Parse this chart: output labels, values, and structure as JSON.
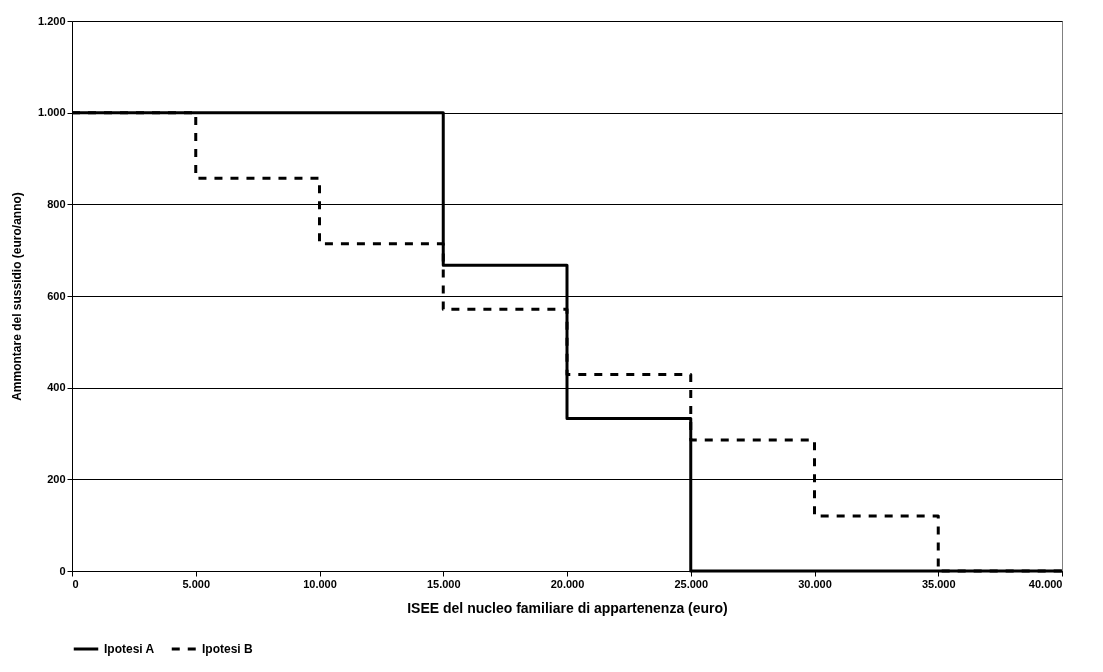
{
  "chart_data": {
    "type": "step",
    "xlabel": "ISEE del nucleo familiare di appartenenza (euro)",
    "ylabel": "Ammontare del sussidio (euro/anno)",
    "xlim": [
      0,
      40000
    ],
    "ylim": [
      0,
      1200
    ],
    "xticks": [
      0,
      {
        "value": 5000,
        "label": "5.000"
      },
      {
        "value": 10000,
        "label": "10.000"
      },
      {
        "value": 15000,
        "label": "15.000"
      },
      {
        "value": 20000,
        "label": "20.000"
      },
      {
        "value": 25000,
        "label": "25.000"
      },
      {
        "value": 30000,
        "label": "30.000"
      },
      {
        "value": 35000,
        "label": "35.000"
      },
      {
        "value": 40000,
        "label": "40.000"
      }
    ],
    "yticks": [
      0,
      200,
      400,
      600,
      800,
      {
        "value": 1000,
        "label": "1.000"
      },
      {
        "value": 1200,
        "label": "1.200"
      }
    ],
    "grid": "y",
    "legend": "bottom",
    "marker": "none",
    "series": [
      {
        "name": "Ipotesi A",
        "color": "#000000",
        "line_style": "solid",
        "x": [
          0,
          15000,
          20000,
          25000,
          40000
        ],
        "values": [
          1000,
          667,
          333,
          0,
          0
        ]
      },
      {
        "name": "Ipotesi B",
        "color": "#000000",
        "line_style": "dashed",
        "x": [
          0,
          5000,
          10000,
          15000,
          20000,
          25000,
          30000,
          35000,
          40000
        ],
        "values": [
          1000,
          857,
          714,
          571,
          429,
          286,
          120,
          0,
          0
        ]
      }
    ]
  }
}
